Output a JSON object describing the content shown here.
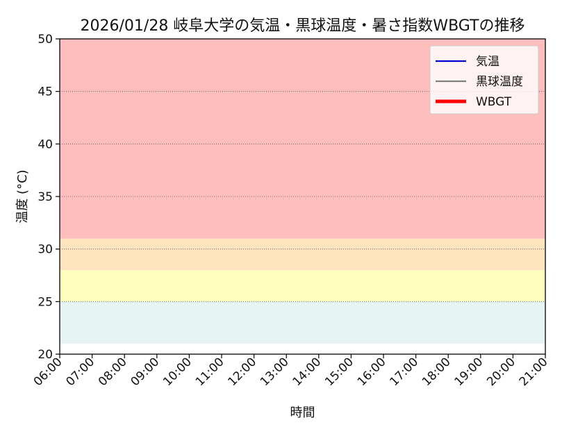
{
  "chart_data": {
    "type": "line",
    "title": "2026/01/28 岐阜大学の気温・黒球温度・暑さ指数WBGTの推移",
    "xlabel": "時間",
    "ylabel": "温度 (°C)",
    "ylim": [
      20,
      50
    ],
    "yticks": [
      "20",
      "25",
      "30",
      "35",
      "40",
      "45",
      "50"
    ],
    "x_categories": [
      "06:00",
      "07:00",
      "08:00",
      "09:00",
      "10:00",
      "11:00",
      "12:00",
      "13:00",
      "14:00",
      "15:00",
      "16:00",
      "17:00",
      "18:00",
      "19:00",
      "20:00",
      "21:00"
    ],
    "grid": "horizontal dotted",
    "legend_position": "top-right",
    "bands": [
      {
        "from": 21,
        "to": 25,
        "color": "#e6f4f4"
      },
      {
        "from": 25,
        "to": 28,
        "color": "#fefebe"
      },
      {
        "from": 28,
        "to": 31,
        "color": "#ffe4be"
      },
      {
        "from": 31,
        "to": 50,
        "color": "#ffbebe"
      }
    ],
    "series": [
      {
        "name": "気温",
        "color": "#0000cc",
        "values": []
      },
      {
        "name": "黒球温度",
        "color": "#808080",
        "values": []
      },
      {
        "name": "WBGT",
        "color": "#ff0000",
        "values": []
      }
    ]
  }
}
